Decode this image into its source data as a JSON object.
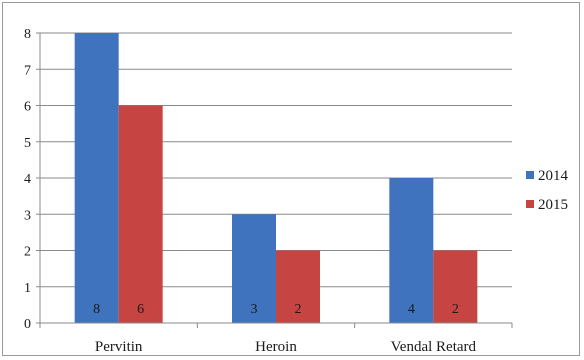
{
  "chart_data": {
    "type": "bar",
    "categories": [
      "Pervitin",
      "Heroin",
      "Vendal Retard"
    ],
    "series": [
      {
        "name": "2014",
        "values": [
          8,
          3,
          4
        ],
        "color": "#3f73bd"
      },
      {
        "name": "2015",
        "values": [
          6,
          2,
          2
        ],
        "color": "#c64441"
      }
    ],
    "ylim": [
      0,
      8
    ],
    "yticks": [
      0,
      1,
      2,
      3,
      4,
      5,
      6,
      7,
      8
    ],
    "grid": true,
    "legend": "right",
    "data_labels": true
  }
}
